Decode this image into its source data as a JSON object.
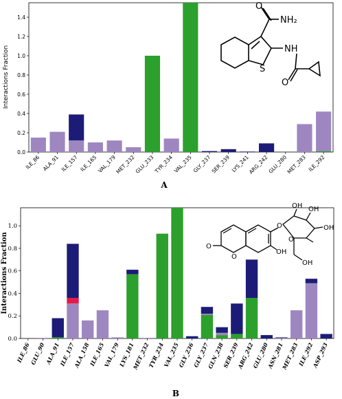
{
  "colors": {
    "hbond": "#2ca02c",
    "hydrophobic": "#1c1c78",
    "ionic": "#e6194b",
    "water_bridge": "#9e87c0"
  },
  "panels": {
    "a": {
      "label": "A"
    },
    "b": {
      "label": "B"
    }
  },
  "structures": {
    "a": {
      "amide_label": "NH₂",
      "nh_label": "NH",
      "s_label": "S",
      "o1_label": "O",
      "o2_label": "O"
    },
    "b": {
      "o_ring_label": "O",
      "o_carbonyl_label": "O",
      "o_glycoside_label": "O",
      "oh_label": "OH",
      "sugar_o_label": "O",
      "sugar_oh1": "OH",
      "sugar_oh2": "OH",
      "sugar_oh3": "OH",
      "sugar_oh4": "OH"
    }
  },
  "chart_data": [
    {
      "type": "bar",
      "stacked": true,
      "panel": "A",
      "ylabel": "Interactions Fraction",
      "ylim": [
        0,
        1.55
      ],
      "yticks": [
        0.0,
        0.2,
        0.4,
        0.6,
        0.8,
        1.0,
        1.2,
        1.4
      ],
      "categories": [
        "ILE_86",
        "ALA_91",
        "ILE_157",
        "ILE_165",
        "VAL_179",
        "MET_232",
        "GLU_233",
        "TYR_234",
        "VAL_235",
        "GLY_237",
        "SER_239",
        "LYS_241",
        "ARG_242",
        "GLU_280",
        "MET_283",
        "ILE_292"
      ],
      "series": [
        {
          "key": "hbond",
          "values": [
            0,
            0,
            0,
            0,
            0,
            0,
            1.0,
            0,
            1.55,
            0,
            0,
            0,
            0,
            0,
            0,
            0.01
          ]
        },
        {
          "key": "water_bridge",
          "values": [
            0.15,
            0.21,
            0.12,
            0.1,
            0.12,
            0.05,
            0,
            0.14,
            0,
            0,
            0,
            0,
            0,
            0,
            0.29,
            0.41
          ]
        },
        {
          "key": "hydrophobic",
          "values": [
            0,
            0,
            0.27,
            0,
            0,
            0,
            0,
            0,
            0,
            0.01,
            0.03,
            0.005,
            0.09,
            0,
            0,
            0
          ]
        }
      ]
    },
    {
      "type": "bar",
      "stacked": true,
      "panel": "B",
      "ylabel": "Interactions Fraction",
      "ylim": [
        0,
        1.16
      ],
      "yticks": [
        0.0,
        0.2,
        0.4,
        0.6,
        0.8,
        1.0
      ],
      "categories": [
        "ILE_86",
        "GLU_90",
        "ALA_91",
        "ILE_157",
        "ALA_158",
        "ILE_165",
        "VAL_179",
        "LYS_181",
        "MET_232",
        "TYR_234",
        "VAL_235",
        "GLY_236",
        "GLY_237",
        "GLN_238",
        "SER_239",
        "ARG_242",
        "GLU_280",
        "ASN_281",
        "MET_283",
        "ILE_292",
        "ASP_293"
      ],
      "series": [
        {
          "key": "hbond",
          "values": [
            0,
            0,
            0.01,
            0,
            0,
            0,
            0,
            0.57,
            0,
            0.93,
            1.16,
            0,
            0.21,
            0.03,
            0.04,
            0.36,
            0,
            0,
            0,
            0,
            0
          ]
        },
        {
          "key": "water_bridge",
          "values": [
            0,
            0.005,
            0,
            0.31,
            0.16,
            0.25,
            0.01,
            0,
            0.005,
            0,
            0,
            0,
            0.01,
            0.02,
            0,
            0,
            0,
            0.005,
            0.25,
            0.49,
            0
          ]
        },
        {
          "key": "ionic",
          "values": [
            0,
            0,
            0,
            0.05,
            0,
            0,
            0,
            0,
            0,
            0,
            0,
            0,
            0,
            0,
            0,
            0,
            0,
            0,
            0,
            0,
            0
          ]
        },
        {
          "key": "hydrophobic",
          "values": [
            0,
            0,
            0.17,
            0.48,
            0,
            0,
            0,
            0.04,
            0,
            0,
            0,
            0.02,
            0.06,
            0.05,
            0.27,
            0.34,
            0.03,
            0.005,
            0,
            0.04,
            0.04
          ]
        }
      ]
    }
  ]
}
